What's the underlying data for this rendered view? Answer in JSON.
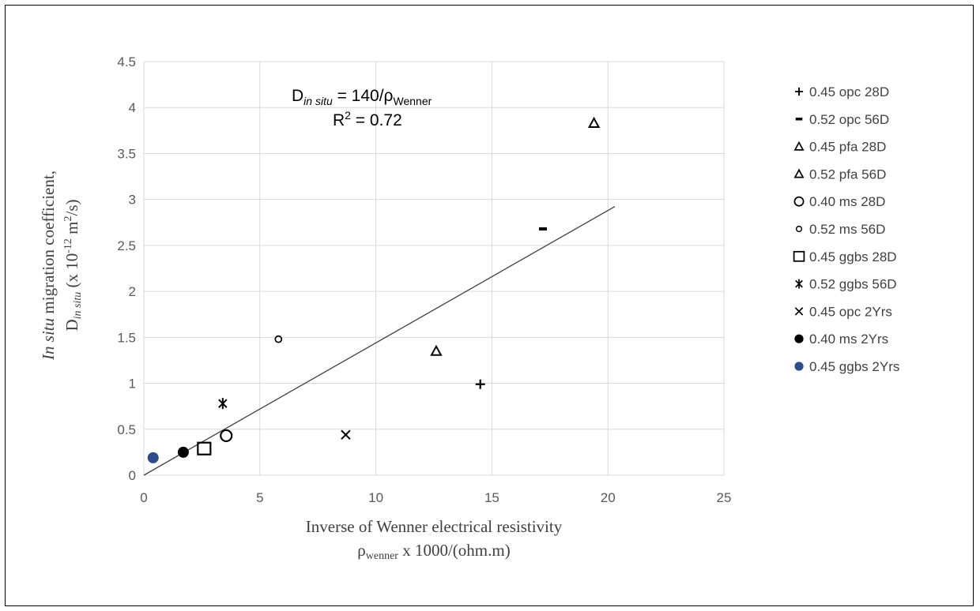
{
  "chart_data": {
    "type": "scatter",
    "xlim": [
      0,
      25
    ],
    "ylim": [
      0,
      4.5
    ],
    "x_ticks": [
      "0",
      "5",
      "10",
      "15",
      "20",
      "25"
    ],
    "y_ticks": [
      "0",
      "0.5",
      "1",
      "1.5",
      "2",
      "2.5",
      "3",
      "3.5",
      "4",
      "4.5"
    ],
    "grid": "horizontal and vertical",
    "legend_position": "right",
    "xlabel_line1": "Inverse of Wenner electrical resistivity",
    "xlabel_line2_symbol": "ρ",
    "xlabel_line2_sub": "wenner",
    "xlabel_line2_rest": " x 1000/(ohm.m)",
    "ylabel_line1_italic": "In situ",
    "ylabel_line1_rest": " migration coefficient,",
    "ylabel_line2_D": "D",
    "ylabel_line2_sub": "in situ",
    "ylabel_line2_mid": " (x 10",
    "ylabel_line2_exp1": "-12",
    "ylabel_line2_unit": " m",
    "ylabel_line2_exp2": "2",
    "ylabel_line2_end": "/s)",
    "annotation": {
      "eq_D": "D",
      "eq_sub1": "in situ",
      "eq_mid": " = 140/ρ",
      "eq_sub2": "Wenner",
      "r2_R": "R",
      "r2_sup": "2",
      "r2_rest": " = 0.72"
    },
    "trendline": {
      "slope": 0.144,
      "x_range": [
        0,
        20.3
      ]
    },
    "series": [
      {
        "name": "0.45 opc 28D",
        "marker": "plus",
        "x": [
          14.5
        ],
        "y": [
          0.99
        ]
      },
      {
        "name": "0.52 opc 56D",
        "marker": "dash",
        "x": [
          17.2
        ],
        "y": [
          2.68
        ]
      },
      {
        "name": "0.45 pfa 28D",
        "marker": "triangle",
        "x": [
          19.4
        ],
        "y": [
          3.83
        ]
      },
      {
        "name": "0.52 pfa 56D",
        "marker": "triangle",
        "x": [
          12.6
        ],
        "y": [
          1.35
        ]
      },
      {
        "name": "0.40 ms 28D",
        "marker": "circle-open-large",
        "x": [
          3.55
        ],
        "y": [
          0.43
        ]
      },
      {
        "name": "0.52 ms 56D",
        "marker": "circle-open-small",
        "x": [
          5.8
        ],
        "y": [
          1.48
        ]
      },
      {
        "name": "0.45 ggbs 28D",
        "marker": "square-open",
        "x": [
          2.6
        ],
        "y": [
          0.29
        ]
      },
      {
        "name": "0.52 ggbs 56D",
        "marker": "asterisk",
        "x": [
          3.4
        ],
        "y": [
          0.78
        ]
      },
      {
        "name": "0.45 opc 2Yrs",
        "marker": "cross",
        "x": [
          8.7
        ],
        "y": [
          0.44
        ]
      },
      {
        "name": "0.40 ms 2Yrs",
        "marker": "circle-filled-black",
        "x": [
          1.7
        ],
        "y": [
          0.25
        ]
      },
      {
        "name": "0.45 ggbs 2Yrs",
        "marker": "circle-filled-blue",
        "x": [
          0.4
        ],
        "y": [
          0.19
        ]
      }
    ],
    "colors": {
      "markers": "#000000",
      "ggbs_2yrs": "#2e4c8c",
      "grid": "#d9d9d9",
      "trendline": "#404040"
    }
  }
}
